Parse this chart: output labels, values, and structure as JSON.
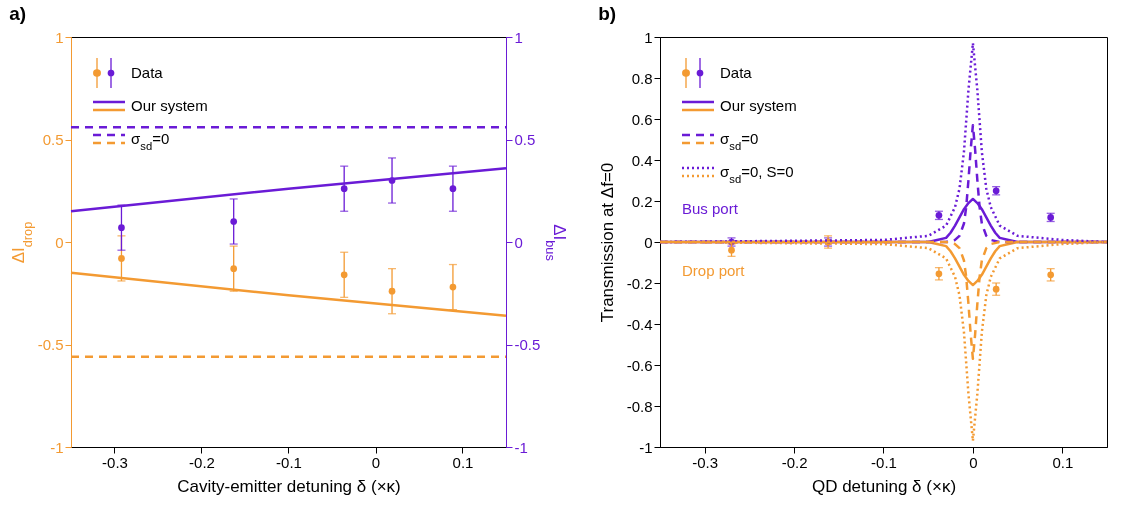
{
  "chart_data": [
    {
      "type": "line",
      "title": "a)",
      "xlabel": "Cavity-emitter detuning δ (×κ)",
      "ylabel": "ΔI$_{drop}$",
      "y2label": "ΔI$_{bus}$",
      "xlim": [
        -0.35,
        0.15
      ],
      "xticks": [
        -0.3,
        -0.2,
        -0.1,
        0,
        0.1
      ],
      "ylim": [
        -1,
        1
      ],
      "yticks": [
        -1,
        -0.5,
        0,
        0.5,
        1
      ],
      "y2lim": [
        -1,
        1
      ],
      "y2ticks": [
        -1,
        -0.5,
        0,
        0.5,
        1
      ],
      "x": [
        -0.292,
        -0.163,
        -0.036,
        0.019,
        0.089
      ],
      "legend": "top left",
      "series": [
        {
          "name": "Data",
          "type": "scatter",
          "marker": "circle",
          "axis": "y2",
          "color": "#6a1bd6",
          "values": [
            0.07,
            0.1,
            0.26,
            0.3,
            0.26
          ],
          "errors": [
            0.11,
            0.11,
            0.11,
            0.11,
            0.11
          ]
        },
        {
          "type": "scatter",
          "marker": "circle",
          "color": "#f39a32",
          "values": [
            -0.08,
            -0.13,
            -0.16,
            -0.24,
            -0.22
          ],
          "errors": [
            0.11,
            0.11,
            0.11,
            0.11,
            0.11
          ]
        },
        {
          "name": "Our system",
          "axis": "y2",
          "color": "#6a1bd6",
          "x": [
            -0.35,
            -0.1,
            0.15
          ],
          "values": [
            0.15,
            0.26,
            0.36
          ]
        },
        {
          "color": "#f39a32",
          "x": [
            -0.35,
            -0.1,
            0.15
          ],
          "values": [
            -0.15,
            -0.26,
            -0.36
          ]
        },
        {
          "name": "σ$_{sd}$=0",
          "axis": "y2",
          "line_style": "dashed",
          "color": "#6a1bd6",
          "x": [
            -0.35,
            0.15
          ],
          "values": [
            0.56,
            0.56
          ]
        },
        {
          "line_style": "dashed",
          "color": "#f39a32",
          "x": [
            -0.35,
            0.15
          ],
          "values": [
            -0.56,
            -0.56
          ]
        }
      ]
    },
    {
      "type": "line",
      "title": "b)",
      "xlabel": "QD detuning δ (×κ)",
      "ylabel": "Transmission at Δf=0",
      "xlim": [
        -0.35,
        0.15
      ],
      "xticks": [
        -0.3,
        -0.2,
        -0.1,
        0,
        0.1
      ],
      "ylim": [
        -1,
        1
      ],
      "yticks": [
        -1,
        -0.8,
        -0.6,
        -0.4,
        -0.2,
        0,
        0.2,
        0.4,
        0.6,
        0.8,
        1
      ],
      "x": [
        -0.27,
        -0.162,
        -0.038,
        0.026,
        0.087
      ],
      "legend": "top left",
      "annotations": [
        "Bus port",
        "Drop port"
      ],
      "series": [
        {
          "name": "Data",
          "type": "scatter",
          "marker": "circle",
          "color": "#6a1bd6",
          "values": [
            0,
            0,
            0.13,
            0.25,
            0.12
          ],
          "errors": [
            0.02,
            0.02,
            0.02,
            0.02,
            0.02
          ]
        },
        {
          "type": "scatter",
          "marker": "circle",
          "color": "#f39a32",
          "values": [
            -0.04,
            0,
            -0.155,
            -0.23,
            -0.16
          ],
          "errors": [
            0.03,
            0.03,
            0.03,
            0.03,
            0.03
          ]
        },
        {
          "name": "Our system",
          "color": "#6a1bd6",
          "x": [
            -0.35,
            -0.1,
            -0.05,
            -0.04,
            -0.03,
            -0.025,
            -0.02,
            -0.015,
            -0.01,
            -0.005,
            0,
            0.005,
            0.01,
            0.015,
            0.02,
            0.025,
            0.03,
            0.04,
            0.05,
            0.1,
            0.15
          ],
          "values": [
            0,
            0,
            0,
            0.01,
            0.02,
            0.045,
            0.08,
            0.12,
            0.16,
            0.19,
            0.21,
            0.19,
            0.16,
            0.12,
            0.08,
            0.045,
            0.02,
            0.01,
            0,
            0,
            0
          ]
        },
        {
          "color": "#f39a32",
          "x": [
            -0.35,
            -0.1,
            -0.05,
            -0.04,
            -0.03,
            -0.025,
            -0.02,
            -0.015,
            -0.01,
            -0.005,
            0,
            0.005,
            0.01,
            0.015,
            0.02,
            0.025,
            0.03,
            0.04,
            0.05,
            0.1,
            0.15
          ],
          "values": [
            0,
            0,
            0,
            -0.01,
            -0.02,
            -0.045,
            -0.08,
            -0.12,
            -0.16,
            -0.19,
            -0.21,
            -0.19,
            -0.16,
            -0.12,
            -0.08,
            -0.045,
            -0.02,
            -0.01,
            0,
            0,
            0
          ]
        },
        {
          "name": "σ$_{sd}$=0",
          "line_style": "dashed",
          "color": "#6a1bd6",
          "x": [
            -0.35,
            -0.1,
            -0.03,
            -0.02,
            -0.015,
            -0.01,
            -0.0075,
            -0.005,
            -0.0025,
            0,
            0.0025,
            0.005,
            0.0075,
            0.01,
            0.015,
            0.02,
            0.03,
            0.1,
            0.15
          ],
          "values": [
            0,
            0,
            0,
            0.01,
            0.03,
            0.09,
            0.17,
            0.3,
            0.45,
            0.57,
            0.45,
            0.3,
            0.17,
            0.09,
            0.03,
            0.01,
            0,
            0,
            0
          ]
        },
        {
          "line_style": "dashed",
          "color": "#f39a32",
          "x": [
            -0.35,
            -0.1,
            -0.03,
            -0.02,
            -0.015,
            -0.01,
            -0.0075,
            -0.005,
            -0.0025,
            0,
            0.0025,
            0.005,
            0.0075,
            0.01,
            0.015,
            0.02,
            0.03,
            0.1,
            0.15
          ],
          "values": [
            0,
            0,
            0,
            -0.01,
            -0.03,
            -0.09,
            -0.17,
            -0.3,
            -0.45,
            -0.57,
            -0.45,
            -0.3,
            -0.17,
            -0.09,
            -0.03,
            -0.01,
            0,
            0,
            0
          ]
        },
        {
          "name": "σ$_{sd}$=0, S=0",
          "line_style": "dotted",
          "color": "#6a1bd6",
          "x": [
            -0.35,
            -0.1,
            -0.05,
            -0.03,
            -0.02,
            -0.015,
            -0.01,
            -0.005,
            0,
            0.005,
            0.01,
            0.015,
            0.02,
            0.03,
            0.05,
            0.1,
            0.15
          ],
          "values": [
            0,
            0.01,
            0.03,
            0.08,
            0.17,
            0.26,
            0.44,
            0.74,
            0.97,
            0.74,
            0.44,
            0.26,
            0.17,
            0.08,
            0.03,
            0.01,
            0
          ]
        },
        {
          "line_style": "dotted",
          "color": "#f39a32",
          "x": [
            -0.35,
            -0.1,
            -0.05,
            -0.03,
            -0.02,
            -0.015,
            -0.01,
            -0.005,
            0,
            0.005,
            0.01,
            0.015,
            0.02,
            0.03,
            0.05,
            0.1,
            0.15
          ],
          "values": [
            0,
            -0.01,
            -0.03,
            -0.08,
            -0.17,
            -0.26,
            -0.44,
            -0.74,
            -0.97,
            -0.74,
            -0.44,
            -0.26,
            -0.17,
            -0.08,
            -0.03,
            -0.01,
            0
          ]
        }
      ]
    }
  ]
}
